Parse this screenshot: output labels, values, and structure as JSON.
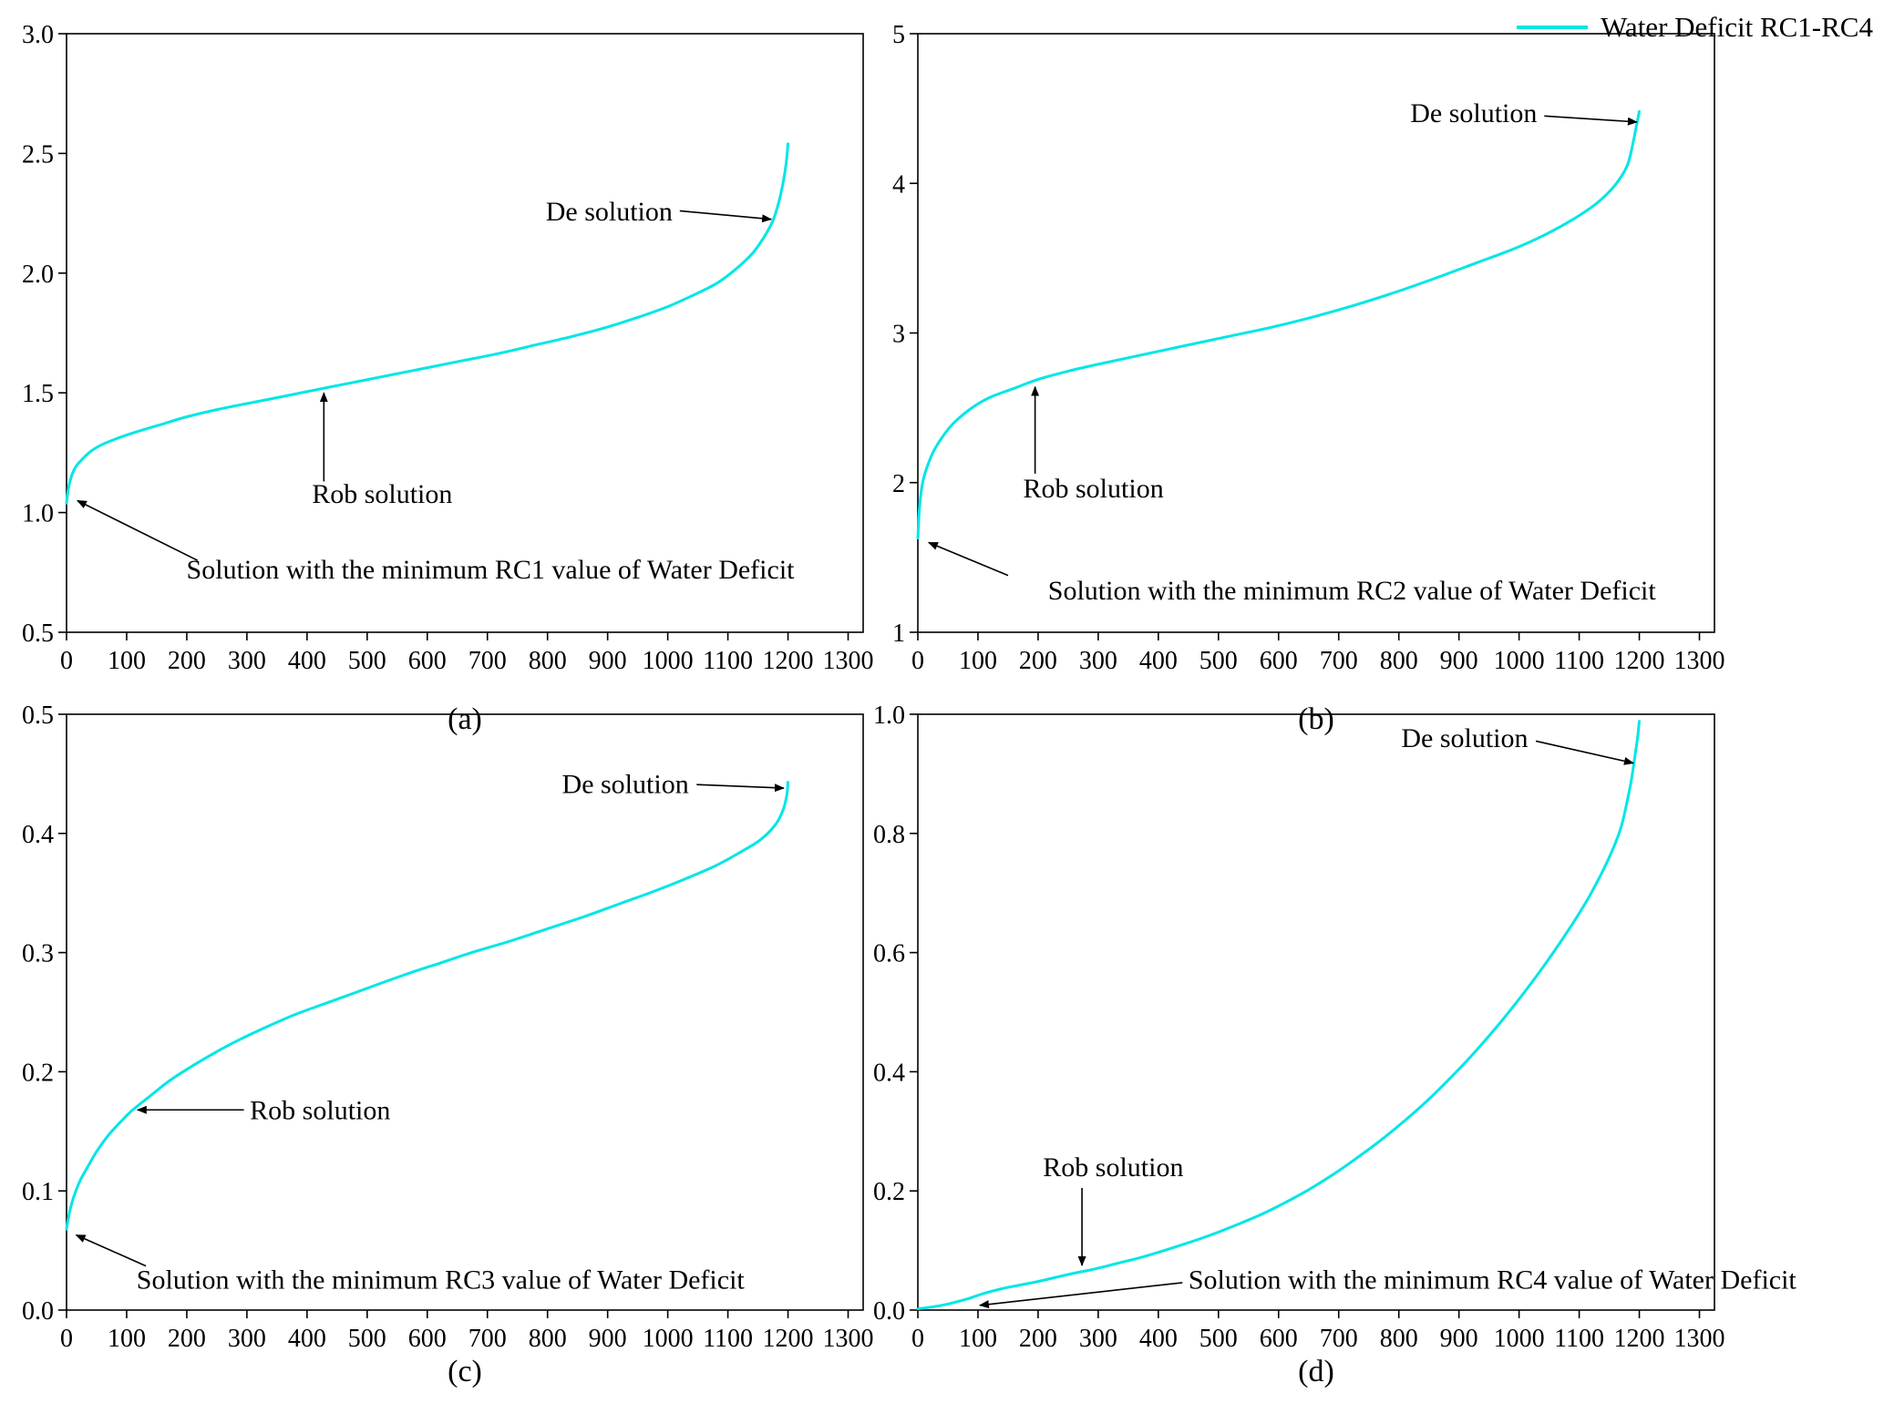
{
  "legend": {
    "label": "Water Deficit RC1-RC4",
    "color": "#00e6e6"
  },
  "colors": {
    "line": "#00e6e6",
    "axis": "#000000",
    "background": "#ffffff"
  },
  "chart_data": [
    {
      "id": "a",
      "type": "line",
      "caption": "(a)",
      "xlim": [
        0,
        1325
      ],
      "ylim": [
        0.5,
        3.0
      ],
      "grid": false,
      "xticks": [
        0,
        100,
        200,
        300,
        400,
        500,
        600,
        700,
        800,
        900,
        1000,
        1100,
        1200,
        1300
      ],
      "xtick_labels": [
        "0",
        "100",
        "200",
        "300",
        "400",
        "500",
        "600",
        "700",
        "800",
        "900",
        "1000",
        "1100",
        "1200",
        "1300"
      ],
      "yticks": [
        0.5,
        1.0,
        1.5,
        2.0,
        2.5,
        3.0
      ],
      "ytick_labels": [
        "0.5",
        "1.0",
        "1.5",
        "2.0",
        "2.5",
        "3.0"
      ],
      "series": [
        {
          "name": "Water Deficit RC1",
          "points": [
            [
              0,
              1.04
            ],
            [
              3,
              1.1
            ],
            [
              8,
              1.15
            ],
            [
              15,
              1.19
            ],
            [
              25,
              1.22
            ],
            [
              40,
              1.255
            ],
            [
              60,
              1.285
            ],
            [
              90,
              1.315
            ],
            [
              120,
              1.34
            ],
            [
              160,
              1.37
            ],
            [
              200,
              1.4
            ],
            [
              250,
              1.43
            ],
            [
              300,
              1.455
            ],
            [
              350,
              1.48
            ],
            [
              400,
              1.505
            ],
            [
              430,
              1.52
            ],
            [
              480,
              1.545
            ],
            [
              540,
              1.575
            ],
            [
              600,
              1.605
            ],
            [
              660,
              1.635
            ],
            [
              720,
              1.665
            ],
            [
              780,
              1.7
            ],
            [
              840,
              1.735
            ],
            [
              900,
              1.775
            ],
            [
              950,
              1.815
            ],
            [
              1000,
              1.86
            ],
            [
              1040,
              1.905
            ],
            [
              1080,
              1.955
            ],
            [
              1110,
              2.01
            ],
            [
              1140,
              2.08
            ],
            [
              1160,
              2.15
            ],
            [
              1175,
              2.22
            ],
            [
              1185,
              2.3
            ],
            [
              1192,
              2.38
            ],
            [
              1197,
              2.46
            ],
            [
              1200,
              2.54
            ]
          ]
        }
      ],
      "annotations": [
        {
          "text": "De solution",
          "x": 1008,
          "y": 2.22,
          "anchor": "end",
          "arrow": [
            1020,
            2.26,
            1172,
            2.225
          ]
        },
        {
          "text": "Rob solution",
          "x": 525,
          "y": 1.04,
          "anchor": "middle",
          "arrow": [
            428,
            1.13,
            428,
            1.5
          ]
        },
        {
          "text": "Solution with the minimum RC1 value of Water Deficit",
          "x": 705,
          "y": 0.725,
          "anchor": "middle",
          "arrow": [
            218,
            0.8,
            18,
            1.05
          ]
        }
      ]
    },
    {
      "id": "b",
      "type": "line",
      "caption": "(b)",
      "xlim": [
        0,
        1325
      ],
      "ylim": [
        1,
        5
      ],
      "grid": false,
      "xticks": [
        0,
        100,
        200,
        300,
        400,
        500,
        600,
        700,
        800,
        900,
        1000,
        1100,
        1200,
        1300
      ],
      "xtick_labels": [
        "0",
        "100",
        "200",
        "300",
        "400",
        "500",
        "600",
        "700",
        "800",
        "900",
        "1000",
        "1100",
        "1200",
        "1300"
      ],
      "yticks": [
        1,
        2,
        3,
        4,
        5
      ],
      "ytick_labels": [
        "1",
        "2",
        "3",
        "4",
        "5"
      ],
      "series": [
        {
          "name": "Water Deficit RC2",
          "points": [
            [
              0,
              1.63
            ],
            [
              3,
              1.85
            ],
            [
              8,
              2.0
            ],
            [
              15,
              2.1
            ],
            [
              25,
              2.2
            ],
            [
              40,
              2.3
            ],
            [
              60,
              2.4
            ],
            [
              90,
              2.5
            ],
            [
              120,
              2.57
            ],
            [
              160,
              2.63
            ],
            [
              200,
              2.69
            ],
            [
              250,
              2.745
            ],
            [
              310,
              2.8
            ],
            [
              380,
              2.86
            ],
            [
              450,
              2.92
            ],
            [
              520,
              2.98
            ],
            [
              590,
              3.04
            ],
            [
              660,
              3.11
            ],
            [
              730,
              3.19
            ],
            [
              800,
              3.28
            ],
            [
              870,
              3.38
            ],
            [
              930,
              3.47
            ],
            [
              990,
              3.56
            ],
            [
              1040,
              3.65
            ],
            [
              1090,
              3.76
            ],
            [
              1130,
              3.87
            ],
            [
              1160,
              3.99
            ],
            [
              1180,
              4.12
            ],
            [
              1190,
              4.28
            ],
            [
              1196,
              4.4
            ],
            [
              1200,
              4.48
            ]
          ]
        }
      ],
      "annotations": [
        {
          "text": "De solution",
          "x": 1030,
          "y": 4.41,
          "anchor": "end",
          "arrow": [
            1042,
            4.45,
            1196,
            4.41
          ]
        },
        {
          "text": "Rob solution",
          "x": 292,
          "y": 1.9,
          "anchor": "middle",
          "arrow": [
            195,
            2.06,
            195,
            2.64
          ]
        },
        {
          "text": "Solution with the minimum RC2 value of Water Deficit",
          "x": 722,
          "y": 1.22,
          "anchor": "middle",
          "arrow": [
            150,
            1.38,
            18,
            1.6
          ]
        }
      ]
    },
    {
      "id": "c",
      "type": "line",
      "caption": "(c)",
      "xlim": [
        0,
        1325
      ],
      "ylim": [
        0.0,
        0.5
      ],
      "grid": false,
      "xticks": [
        0,
        100,
        200,
        300,
        400,
        500,
        600,
        700,
        800,
        900,
        1000,
        1100,
        1200,
        1300
      ],
      "xtick_labels": [
        "0",
        "100",
        "200",
        "300",
        "400",
        "500",
        "600",
        "700",
        "800",
        "900",
        "1000",
        "1100",
        "1200",
        "1300"
      ],
      "yticks": [
        0.0,
        0.1,
        0.2,
        0.3,
        0.4,
        0.5
      ],
      "ytick_labels": [
        "0.0",
        "0.1",
        "0.2",
        "0.3",
        "0.4",
        "0.5"
      ],
      "series": [
        {
          "name": "Water Deficit RC3",
          "points": [
            [
              0,
              0.068
            ],
            [
              5,
              0.082
            ],
            [
              12,
              0.095
            ],
            [
              22,
              0.108
            ],
            [
              35,
              0.12
            ],
            [
              50,
              0.133
            ],
            [
              70,
              0.147
            ],
            [
              90,
              0.158
            ],
            [
              110,
              0.168
            ],
            [
              140,
              0.18
            ],
            [
              170,
              0.192
            ],
            [
              200,
              0.202
            ],
            [
              240,
              0.214
            ],
            [
              280,
              0.225
            ],
            [
              330,
              0.237
            ],
            [
              380,
              0.248
            ],
            [
              440,
              0.259
            ],
            [
              500,
              0.27
            ],
            [
              560,
              0.281
            ],
            [
              620,
              0.291
            ],
            [
              680,
              0.301
            ],
            [
              740,
              0.31
            ],
            [
              800,
              0.32
            ],
            [
              860,
              0.33
            ],
            [
              920,
              0.341
            ],
            [
              980,
              0.352
            ],
            [
              1030,
              0.362
            ],
            [
              1080,
              0.373
            ],
            [
              1120,
              0.384
            ],
            [
              1155,
              0.395
            ],
            [
              1180,
              0.408
            ],
            [
              1192,
              0.42
            ],
            [
              1198,
              0.432
            ],
            [
              1200,
              0.443
            ]
          ]
        }
      ],
      "annotations": [
        {
          "text": "De solution",
          "x": 1035,
          "y": 0.434,
          "anchor": "end",
          "arrow": [
            1048,
            0.441,
            1193,
            0.438
          ]
        },
        {
          "text": "Rob solution",
          "x": 305,
          "y": 0.16,
          "anchor": "start",
          "arrow": [
            295,
            0.168,
            118,
            0.168
          ]
        },
        {
          "text": "Solution with the minimum RC3 value of Water Deficit",
          "x": 622,
          "y": 0.018,
          "anchor": "middle",
          "arrow": [
            132,
            0.037,
            16,
            0.063
          ]
        }
      ]
    },
    {
      "id": "d",
      "type": "line",
      "caption": "(d)",
      "xlim": [
        0,
        1325
      ],
      "ylim": [
        0.0,
        1.0
      ],
      "grid": false,
      "xticks": [
        0,
        100,
        200,
        300,
        400,
        500,
        600,
        700,
        800,
        900,
        1000,
        1100,
        1200,
        1300
      ],
      "xtick_labels": [
        "0",
        "100",
        "200",
        "300",
        "400",
        "500",
        "600",
        "700",
        "800",
        "900",
        "1000",
        "1100",
        "1200",
        "1300"
      ],
      "yticks": [
        0.0,
        0.2,
        0.4,
        0.6,
        0.8,
        1.0
      ],
      "ytick_labels": [
        "0.0",
        "0.2",
        "0.4",
        "0.6",
        "0.8",
        "1.0"
      ],
      "series": [
        {
          "name": "Water Deficit RC4",
          "points": [
            [
              0,
              0.002
            ],
            [
              40,
              0.008
            ],
            [
              80,
              0.018
            ],
            [
              110,
              0.028
            ],
            [
              140,
              0.036
            ],
            [
              170,
              0.042
            ],
            [
              200,
              0.048
            ],
            [
              230,
              0.055
            ],
            [
              260,
              0.062
            ],
            [
              290,
              0.068
            ],
            [
              330,
              0.078
            ],
            [
              370,
              0.088
            ],
            [
              410,
              0.1
            ],
            [
              450,
              0.113
            ],
            [
              490,
              0.127
            ],
            [
              530,
              0.143
            ],
            [
              570,
              0.16
            ],
            [
              610,
              0.18
            ],
            [
              650,
              0.202
            ],
            [
              690,
              0.227
            ],
            [
              730,
              0.255
            ],
            [
              770,
              0.285
            ],
            [
              810,
              0.318
            ],
            [
              850,
              0.354
            ],
            [
              890,
              0.394
            ],
            [
              930,
              0.437
            ],
            [
              970,
              0.484
            ],
            [
              1010,
              0.535
            ],
            [
              1050,
              0.59
            ],
            [
              1090,
              0.65
            ],
            [
              1120,
              0.7
            ],
            [
              1150,
              0.76
            ],
            [
              1170,
              0.812
            ],
            [
              1185,
              0.88
            ],
            [
              1192,
              0.925
            ],
            [
              1197,
              0.96
            ],
            [
              1200,
              0.988
            ]
          ]
        }
      ],
      "annotations": [
        {
          "text": "De solution",
          "x": 1015,
          "y": 0.945,
          "anchor": "end",
          "arrow": [
            1028,
            0.955,
            1190,
            0.918
          ]
        },
        {
          "text": "Rob solution",
          "x": 325,
          "y": 0.225,
          "anchor": "middle",
          "arrow": [
            273,
            0.205,
            273,
            0.075
          ]
        },
        {
          "text": "Solution with the minimum RC4 value of Water Deficit",
          "x": 450,
          "y": 0.036,
          "anchor": "start",
          "arrow": [
            440,
            0.046,
            103,
            0.008
          ]
        }
      ]
    }
  ]
}
